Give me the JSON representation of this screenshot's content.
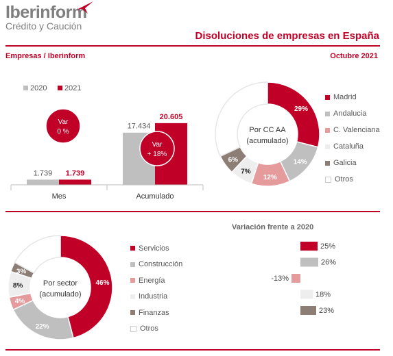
{
  "brand": {
    "name": "Iberinform",
    "tagline": "Crédito y Caución"
  },
  "header": {
    "title": "Disoluciones de empresas en España",
    "left": "Empresas / Iberinform",
    "right": "Octubre 2021"
  },
  "colors": {
    "accent": "#c00027",
    "gray": "#bfbfbf",
    "pink": "#e59a9c",
    "light": "#eeeeee",
    "brown": "#8c7d75",
    "white": "#ffffff"
  },
  "chart_data": [
    {
      "type": "bar",
      "categories": [
        "Mes",
        "Acumulado"
      ],
      "series": [
        {
          "name": "2020",
          "values": [
            1739,
            17434
          ],
          "labels": [
            "1.739",
            "17.434"
          ],
          "color": "#bfbfbf"
        },
        {
          "name": "2021",
          "values": [
            1739,
            20605
          ],
          "labels": [
            "1.739",
            "20.605"
          ],
          "color": "#c00027"
        }
      ],
      "annotations": [
        {
          "category": "Mes",
          "line1": "Var",
          "line2": "0 %"
        },
        {
          "category": "Acumulado",
          "line1": "Var",
          "line2": "+ 18%"
        }
      ],
      "legend": "top-left"
    },
    {
      "type": "pie",
      "center_label": [
        "Por CC AA",
        "(acumulado)"
      ],
      "slices": [
        {
          "name": "Madrid",
          "value": 29,
          "label": "29%",
          "color": "#c00027"
        },
        {
          "name": "Andalucia",
          "value": 14,
          "label": "14%",
          "color": "#bfbfbf"
        },
        {
          "name": "C. Valenciana",
          "value": 12,
          "label": "12%",
          "color": "#e59a9c"
        },
        {
          "name": "Cataluña",
          "value": 7,
          "label": "7%",
          "color": "#eeeeee"
        },
        {
          "name": "Galicia",
          "value": 6,
          "label": "6%",
          "color": "#8c7d75"
        },
        {
          "name": "Otros",
          "value": 32,
          "label": "",
          "color": "#ffffff"
        }
      ],
      "legend": "right"
    },
    {
      "type": "pie",
      "center_label": [
        "Por sector",
        "(acumulado)"
      ],
      "slices": [
        {
          "name": "Servicios",
          "value": 46,
          "label": "46%",
          "color": "#c00027"
        },
        {
          "name": "Construcción",
          "value": 22,
          "label": "22%",
          "color": "#bfbfbf"
        },
        {
          "name": "Energía",
          "value": 4,
          "label": "4%",
          "color": "#e59a9c"
        },
        {
          "name": "Industria",
          "value": 8,
          "label": "8%",
          "color": "#eeeeee"
        },
        {
          "name": "Finanzas",
          "value": 3,
          "label": "3%",
          "color": "#8c7d75"
        },
        {
          "name": "Otros",
          "value": 17,
          "label": "",
          "color": "#ffffff"
        }
      ],
      "legend": "right"
    },
    {
      "type": "bar",
      "orientation": "horizontal",
      "title": "Variación frente a 2020",
      "categories": [
        "Servicios",
        "Construcción",
        "Energía",
        "Industria",
        "Finanzas"
      ],
      "values": [
        25,
        26,
        -13,
        18,
        23
      ],
      "labels": [
        "25%",
        "26%",
        "-13%",
        "18%",
        "23%"
      ],
      "colors": [
        "#c00027",
        "#bfbfbf",
        "#e59a9c",
        "#eeeeee",
        "#8c7d75"
      ]
    }
  ]
}
